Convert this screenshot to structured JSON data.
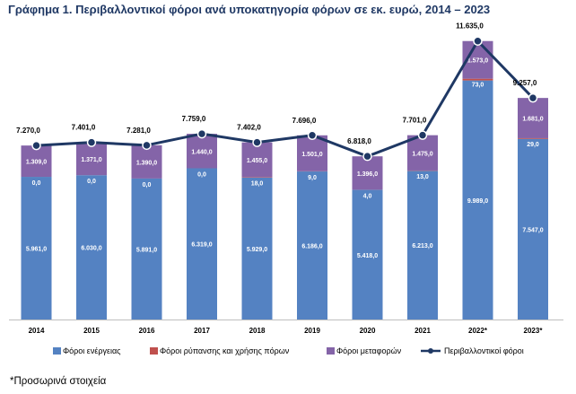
{
  "title": "Γράφημα 1. Περιβαλλοντικοί φόροι ανά υποκατηγορία φόρων σε εκ. ευρώ, 2014 – 2023",
  "footnote": "*Προσωρινά στοιχεία",
  "colors": {
    "energy": "#5482c2",
    "pollution": "#c0504d",
    "transport": "#8464a8",
    "total_line": "#1f3864"
  },
  "chart_data": {
    "type": "bar",
    "stacked": true,
    "categories": [
      "2014",
      "2015",
      "2016",
      "2017",
      "2018",
      "2019",
      "2020",
      "2021",
      "2022*",
      "2023*"
    ],
    "series": [
      {
        "name": "Φόροι ενέργειας",
        "values": [
          5961.0,
          6030.0,
          5891.0,
          6319.0,
          5929.0,
          6186.0,
          5418.0,
          6213.0,
          9989.0,
          7547.0
        ],
        "labels": [
          "5.961,0",
          "6.030,0",
          "5.891,0",
          "6.319,0",
          "5.929,0",
          "6.186,0",
          "5.418,0",
          "6.213,0",
          "9.989,0",
          "7.547,0"
        ]
      },
      {
        "name": "Φόροι ρύπανσης και χρήσης πόρων",
        "values": [
          0.0,
          0.0,
          0.0,
          0.0,
          18.0,
          9.0,
          4.0,
          13.0,
          73.0,
          29.0
        ],
        "labels": [
          "0,0",
          "0,0",
          "0,0",
          "0,0",
          "18,0",
          "9,0",
          "4,0",
          "13,0",
          "73,0",
          "29,0"
        ]
      },
      {
        "name": "Φόροι μεταφορών",
        "values": [
          1309.0,
          1371.0,
          1390.0,
          1440.0,
          1455.0,
          1501.0,
          1396.0,
          1475.0,
          1573.0,
          1681.0
        ],
        "labels": [
          "1.309,0",
          "1.371,0",
          "1.390,0",
          "1.440,0",
          "1.455,0",
          "1.501,0",
          "1.396,0",
          "1.475,0",
          "1.573,0",
          "1.681,0"
        ]
      },
      {
        "name": "Περιβαλλοντικοί φόροι",
        "type": "line",
        "values": [
          7270.0,
          7401.0,
          7281.0,
          7759.0,
          7402.0,
          7696.0,
          6818.0,
          7701.0,
          11635.0,
          9257.0
        ],
        "labels": [
          "7.270,0",
          "7.401,0",
          "7.281,0",
          "7.759,0",
          "7.402,0",
          "7.696,0",
          "6.818,0",
          "7.701,0",
          "11.635,0",
          "9.257,0"
        ]
      }
    ],
    "ylim": [
      0,
      12000
    ],
    "grid": false,
    "legend": "bottom"
  }
}
